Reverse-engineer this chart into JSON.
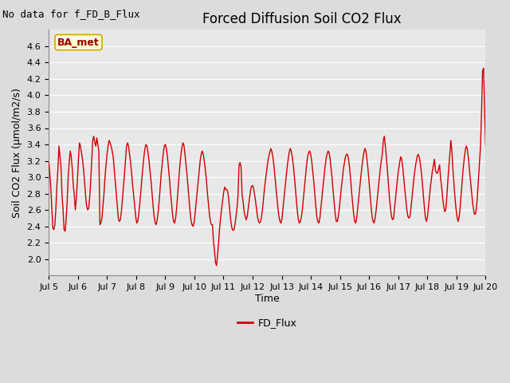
{
  "title": "Forced Diffusion Soil CO2 Flux",
  "xlabel": "Time",
  "ylabel": "Soil CO2 Flux (μmol/m2/s)",
  "no_data_text": "No data for f_FD_B_Flux",
  "legend_label": "FD_Flux",
  "ba_met_label": "BA_met",
  "ylim": [
    1.8,
    4.8
  ],
  "yticks": [
    2.0,
    2.2,
    2.4,
    2.6,
    2.8,
    3.0,
    3.2,
    3.4,
    3.6,
    3.8,
    4.0,
    4.2,
    4.4,
    4.6
  ],
  "xtick_labels": [
    "Jul 5",
    "Jul 6",
    "Jul 7",
    "Jul 8",
    "Jul 9",
    "Jul 10",
    "Jul 11",
    "Jul 12",
    "Jul 13",
    "Jul 14",
    "Jul 15",
    "Jul 16",
    "Jul 17",
    "Jul 18",
    "Jul 19",
    "Jul 20"
  ],
  "line_color": "#cc0000",
  "bg_color": "#dcdcdc",
  "plot_bg_color": "#e8e8e8",
  "grid_color": "#ffffff",
  "ba_met_fg": "#990000",
  "ba_met_bg": "#ffffcc",
  "ba_met_border": "#ccaa00",
  "title_fontsize": 12,
  "ylabel_fontsize": 9,
  "xlabel_fontsize": 9,
  "tick_fontsize": 8,
  "nodata_fontsize": 9,
  "legend_fontsize": 9,
  "y_values": [
    3.18,
    3.05,
    2.88,
    2.62,
    2.38,
    2.36,
    2.42,
    2.62,
    2.9,
    3.1,
    3.38,
    3.25,
    3.12,
    2.78,
    2.6,
    2.36,
    2.34,
    2.48,
    2.7,
    3.0,
    3.18,
    3.32,
    3.25,
    3.1,
    2.9,
    2.78,
    2.6,
    2.75,
    2.95,
    3.2,
    3.42,
    3.38,
    3.3,
    3.22,
    3.1,
    2.95,
    2.78,
    2.65,
    2.6,
    2.62,
    2.75,
    2.95,
    3.2,
    3.45,
    3.5,
    3.42,
    3.38,
    3.48,
    3.4,
    3.32,
    2.42,
    2.44,
    2.5,
    2.65,
    2.8,
    3.0,
    3.15,
    3.28,
    3.38,
    3.45,
    3.42,
    3.38,
    3.32,
    3.25,
    3.1,
    2.95,
    2.8,
    2.65,
    2.5,
    2.46,
    2.48,
    2.58,
    2.72,
    2.88,
    3.05,
    3.2,
    3.38,
    3.42,
    3.38,
    3.28,
    3.18,
    3.05,
    2.9,
    2.78,
    2.65,
    2.52,
    2.44,
    2.46,
    2.55,
    2.68,
    2.82,
    2.98,
    3.12,
    3.25,
    3.35,
    3.4,
    3.38,
    3.3,
    3.2,
    3.08,
    2.95,
    2.8,
    2.65,
    2.52,
    2.44,
    2.42,
    2.48,
    2.58,
    2.72,
    2.88,
    3.05,
    3.18,
    3.3,
    3.38,
    3.4,
    3.35,
    3.25,
    3.12,
    2.98,
    2.82,
    2.68,
    2.55,
    2.46,
    2.44,
    2.5,
    2.62,
    2.78,
    2.95,
    3.12,
    3.25,
    3.35,
    3.42,
    3.4,
    3.3,
    3.18,
    3.05,
    2.9,
    2.75,
    2.6,
    2.48,
    2.42,
    2.4,
    2.44,
    2.55,
    2.68,
    2.82,
    2.95,
    3.08,
    3.2,
    3.28,
    3.32,
    3.28,
    3.2,
    3.1,
    2.98,
    2.82,
    2.68,
    2.55,
    2.46,
    2.42,
    2.42,
    2.22,
    2.1,
    1.96,
    1.92,
    2.05,
    2.2,
    2.38,
    2.5,
    2.62,
    2.72,
    2.82,
    2.88,
    2.85,
    2.85,
    2.82,
    2.72,
    2.58,
    2.46,
    2.38,
    2.35,
    2.36,
    2.42,
    2.52,
    2.62,
    2.78,
    3.15,
    3.18,
    3.12,
    2.78,
    2.7,
    2.58,
    2.52,
    2.48,
    2.52,
    2.62,
    2.72,
    2.82,
    2.88,
    2.9,
    2.88,
    2.8,
    2.72,
    2.62,
    2.52,
    2.46,
    2.44,
    2.46,
    2.52,
    2.62,
    2.75,
    2.88,
    2.98,
    3.08,
    3.18,
    3.25,
    3.3,
    3.35,
    3.32,
    3.25,
    3.15,
    3.02,
    2.88,
    2.75,
    2.62,
    2.52,
    2.46,
    2.44,
    2.5,
    2.62,
    2.75,
    2.88,
    3.0,
    3.12,
    3.22,
    3.3,
    3.35,
    3.32,
    3.25,
    3.15,
    3.02,
    2.88,
    2.72,
    2.58,
    2.48,
    2.44,
    2.46,
    2.52,
    2.62,
    2.75,
    2.88,
    3.02,
    3.15,
    3.25,
    3.3,
    3.32,
    3.28,
    3.2,
    3.08,
    2.95,
    2.8,
    2.65,
    2.52,
    2.46,
    2.44,
    2.5,
    2.62,
    2.75,
    2.88,
    3.0,
    3.12,
    3.22,
    3.28,
    3.32,
    3.3,
    3.22,
    3.1,
    2.98,
    2.82,
    2.68,
    2.55,
    2.46,
    2.46,
    2.52,
    2.62,
    2.75,
    2.88,
    2.98,
    3.1,
    3.18,
    3.25,
    3.28,
    3.28,
    3.22,
    3.12,
    2.98,
    2.82,
    2.68,
    2.55,
    2.46,
    2.44,
    2.5,
    2.62,
    2.75,
    2.88,
    3.0,
    3.12,
    3.22,
    3.3,
    3.35,
    3.32,
    3.22,
    3.1,
    2.95,
    2.8,
    2.65,
    2.52,
    2.46,
    2.44,
    2.5,
    2.6,
    2.72,
    2.85,
    2.98,
    3.1,
    3.2,
    3.28,
    3.45,
    3.5,
    3.38,
    3.25,
    3.08,
    2.9,
    2.75,
    2.62,
    2.52,
    2.48,
    2.5,
    2.62,
    2.75,
    2.88,
    3.0,
    3.1,
    3.18,
    3.25,
    3.22,
    3.12,
    2.98,
    2.85,
    2.72,
    2.6,
    2.52,
    2.5,
    2.52,
    2.62,
    2.75,
    2.88,
    3.0,
    3.1,
    3.18,
    3.25,
    3.28,
    3.25,
    3.18,
    3.08,
    2.95,
    2.8,
    2.65,
    2.52,
    2.46,
    2.5,
    2.62,
    2.75,
    2.88,
    2.98,
    3.08,
    3.15,
    3.22,
    3.08,
    3.05,
    3.05,
    3.1,
    3.15,
    2.98,
    2.88,
    2.75,
    2.65,
    2.58,
    2.6,
    2.75,
    2.95,
    3.12,
    3.28,
    3.45,
    3.32,
    3.1,
    2.92,
    2.75,
    2.62,
    2.52,
    2.46,
    2.5,
    2.62,
    2.78,
    2.95,
    3.1,
    3.22,
    3.32,
    3.38,
    3.35,
    3.25,
    3.12,
    2.98,
    2.85,
    2.72,
    2.62,
    2.55,
    2.55,
    2.62,
    2.78,
    2.98,
    3.18,
    3.38,
    3.8,
    4.3,
    4.33,
    3.8,
    3.38
  ]
}
